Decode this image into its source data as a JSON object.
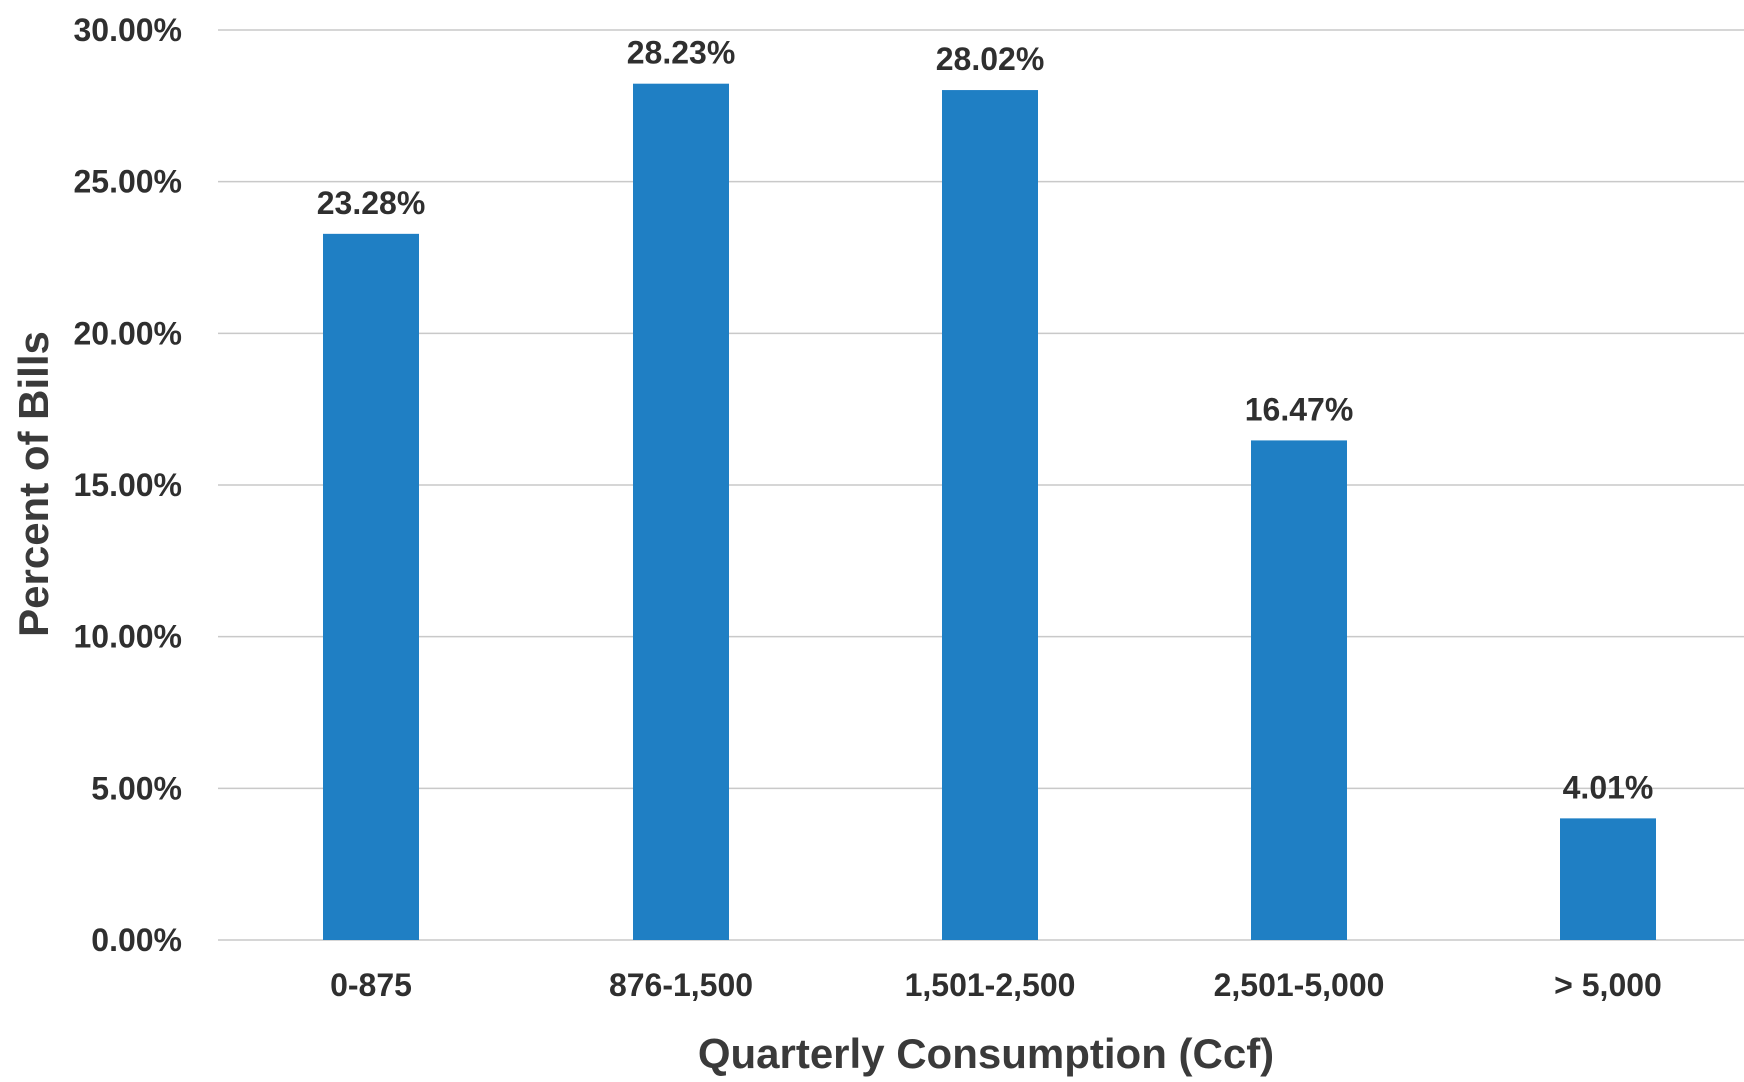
{
  "chart_data": {
    "type": "bar",
    "title": "",
    "xlabel": "Quarterly Consumption (Ccf)",
    "ylabel": "Percent of Bills",
    "categories": [
      "0-875",
      "876-1,500",
      "1,501-2,500",
      "2,501-5,000",
      "> 5,000"
    ],
    "values": [
      23.28,
      28.23,
      28.02,
      16.47,
      4.01
    ],
    "value_labels": [
      "23.28%",
      "28.23%",
      "28.02%",
      "16.47%",
      "4.01%"
    ],
    "ylim": [
      0,
      30
    ],
    "yticks": [
      0,
      5,
      10,
      15,
      20,
      25,
      30
    ],
    "ytick_labels": [
      "0.00%",
      "5.00%",
      "10.00%",
      "15.00%",
      "20.00%",
      "25.00%",
      "30.00%"
    ],
    "grid": true,
    "legend": "none",
    "colors": {
      "bar": "#1f7fc4",
      "grid": "#c9c9c9",
      "text": "#2f2f2f"
    }
  }
}
